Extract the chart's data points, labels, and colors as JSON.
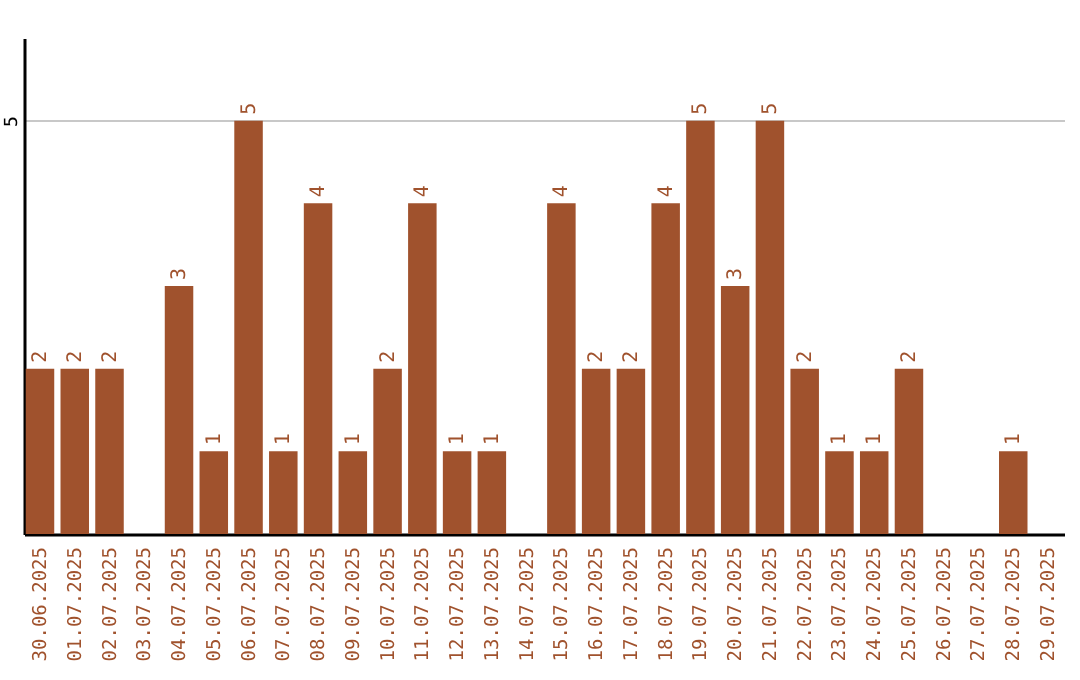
{
  "chart_data": {
    "type": "bar",
    "categories": [
      "30.06.2025",
      "01.07.2025",
      "02.07.2025",
      "03.07.2025",
      "04.07.2025",
      "05.07.2025",
      "06.07.2025",
      "07.07.2025",
      "08.07.2025",
      "09.07.2025",
      "10.07.2025",
      "11.07.2025",
      "12.07.2025",
      "13.07.2025",
      "14.07.2025",
      "15.07.2025",
      "16.07.2025",
      "17.07.2025",
      "18.07.2025",
      "19.07.2025",
      "20.07.2025",
      "21.07.2025",
      "22.07.2025",
      "23.07.2025",
      "24.07.2025",
      "25.07.2025",
      "26.07.2025",
      "27.07.2025",
      "28.07.2025",
      "29.07.2025"
    ],
    "values": [
      2,
      2,
      2,
      0,
      3,
      1,
      5,
      1,
      4,
      1,
      2,
      4,
      1,
      1,
      0,
      4,
      2,
      2,
      4,
      5,
      3,
      5,
      2,
      1,
      1,
      2,
      0,
      0,
      1,
      0
    ],
    "value_labels": [
      "2",
      "2",
      "2",
      null,
      "3",
      "1",
      "5",
      "1",
      "4",
      "1",
      "2",
      "4",
      "1",
      "1",
      null,
      "4",
      "2",
      "2",
      "4",
      "5",
      "3",
      "5",
      "2",
      "1",
      "1",
      "2",
      null,
      null,
      "1",
      null
    ],
    "color": "#a0522d",
    "ylim": [
      0,
      6
    ],
    "yticks": [
      5
    ],
    "grid": "y"
  }
}
